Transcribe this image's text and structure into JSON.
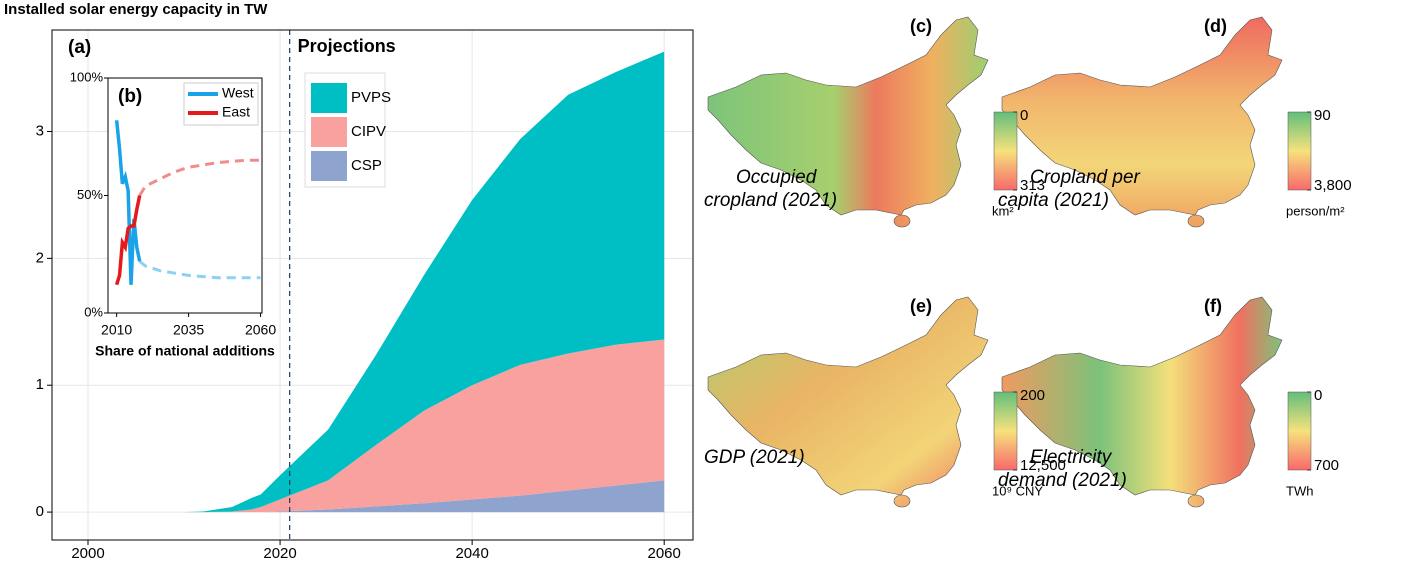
{
  "chart_data": [
    {
      "type": "area",
      "title": "Installed solar energy capacity in TW",
      "panel_label": "(a)",
      "annotation": "Projections",
      "vline": 2021,
      "x": [
        2000,
        2010,
        2012,
        2015,
        2017,
        2018,
        2020,
        2025,
        2030,
        2035,
        2040,
        2045,
        2050,
        2055,
        2060
      ],
      "series": [
        {
          "name": "CSP",
          "color": "#8fa3cf",
          "values": [
            0,
            0,
            0,
            0,
            0,
            0,
            0.005,
            0.02,
            0.045,
            0.07,
            0.1,
            0.13,
            0.17,
            0.21,
            0.25
          ]
        },
        {
          "name": "CIPV",
          "color": "#f9a19f",
          "values": [
            0,
            0,
            0,
            0.005,
            0.02,
            0.04,
            0.095,
            0.23,
            0.485,
            0.73,
            0.9,
            1.03,
            1.08,
            1.11,
            1.11
          ]
        },
        {
          "name": "PVPS",
          "color": "#00bfc4",
          "values": [
            0,
            0,
            0.005,
            0.035,
            0.09,
            0.1,
            0.19,
            0.4,
            0.71,
            1.07,
            1.46,
            1.78,
            2.04,
            2.15,
            2.27
          ]
        }
      ],
      "stacked": true,
      "xlim": [
        1996.25,
        2063
      ],
      "ylim": [
        -0.22,
        3.8
      ],
      "xticks": [
        2000,
        2020,
        2040,
        2060
      ],
      "yticks": [
        0,
        1,
        2,
        3
      ],
      "grid": true
    },
    {
      "type": "line",
      "panel_label": "(b)",
      "xlabel": "Share of national additions",
      "x": [
        2010,
        2011,
        2012,
        2013,
        2014,
        2015,
        2016,
        2017,
        2018,
        2020,
        2025,
        2030,
        2035,
        2040,
        2045,
        2050,
        2055,
        2060
      ],
      "series": [
        {
          "name": "West",
          "color": "#1aa3e8",
          "values": [
            82,
            70,
            55,
            58,
            52,
            12,
            40,
            28,
            22,
            null,
            null,
            null,
            null,
            null,
            null,
            null,
            null,
            null
          ],
          "projected_values": [
            null,
            null,
            null,
            null,
            null,
            null,
            null,
            null,
            22,
            20,
            18,
            17,
            16,
            15.5,
            15,
            15,
            15,
            15
          ]
        },
        {
          "name": "East",
          "color": "#e41a1c",
          "values": [
            12,
            16,
            30,
            28,
            36,
            37,
            37,
            44,
            50,
            null,
            null,
            null,
            null,
            null,
            null,
            null,
            null,
            null
          ],
          "projected_values": [
            null,
            null,
            null,
            null,
            null,
            null,
            null,
            null,
            50,
            54,
            57,
            60,
            62,
            63,
            64,
            64.5,
            65,
            65
          ]
        }
      ],
      "xlim": [
        2007,
        2060.5
      ],
      "ylim": [
        0,
        100
      ],
      "xticks": [
        2010,
        2035,
        2060
      ],
      "yticks": [
        {
          "value": 0,
          "label": "0%"
        },
        {
          "value": 50,
          "label": "50%"
        },
        {
          "value": 100,
          "label": "100%"
        }
      ],
      "legend": "upper right"
    },
    {
      "type": "choropleth",
      "panel_label": "(c)",
      "title_lines": [
        "Occupied",
        "cropland (2021)"
      ],
      "colorbar": {
        "ticks": [
          0,
          313
        ],
        "unit": "km²",
        "colors": [
          "#63be7b",
          "#f5e27c",
          "#f8696b"
        ]
      }
    },
    {
      "type": "choropleth",
      "panel_label": "(d)",
      "title_lines": [
        "Cropland per",
        "capita (2021)"
      ],
      "colorbar": {
        "ticks": [
          90,
          {
            "value": 3800,
            "label": "3,800"
          }
        ],
        "unit": "person/m²",
        "colors": [
          "#63be7b",
          "#f5e27c",
          "#f8696b"
        ]
      }
    },
    {
      "type": "choropleth",
      "panel_label": "(e)",
      "title_lines": [
        "GDP (2021)"
      ],
      "colorbar": {
        "ticks": [
          200,
          {
            "value": 12500,
            "label": "12,500"
          }
        ],
        "unit": "10⁹ CNY",
        "colors": [
          "#63be7b",
          "#f5e27c",
          "#f8696b"
        ]
      }
    },
    {
      "type": "choropleth",
      "panel_label": "(f)",
      "title_lines": [
        "Electricity",
        "demand (2021)"
      ],
      "colorbar": {
        "ticks": [
          0,
          700
        ],
        "unit": "TWh",
        "colors": [
          "#63be7b",
          "#f5e27c",
          "#f8696b"
        ]
      }
    }
  ]
}
